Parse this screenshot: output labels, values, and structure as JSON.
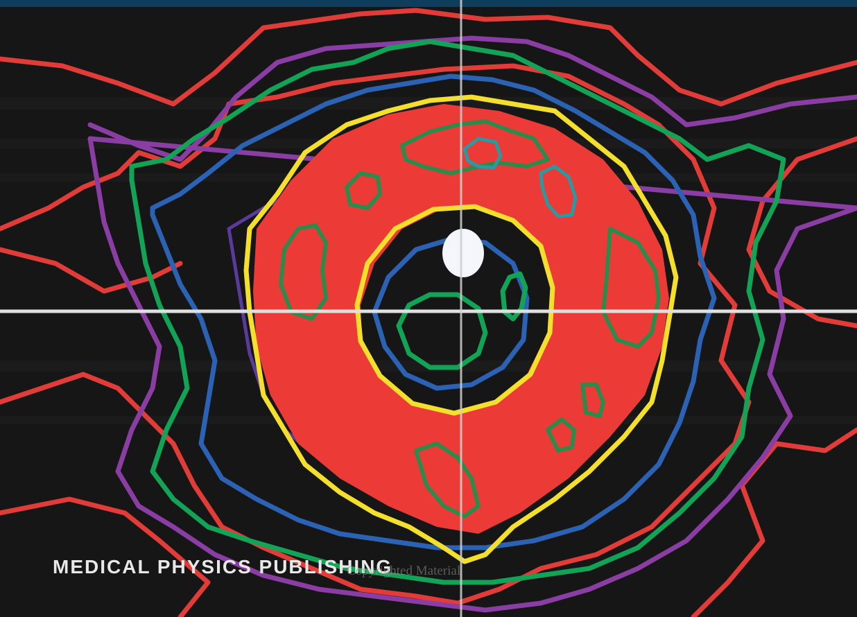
{
  "cover": {
    "publisher": "MEDICAL PHYSICS PUBLISHING",
    "watermark": "Copyrighted Material"
  },
  "colors": {
    "background": "#121212",
    "red_fill": "#ec3b36",
    "contour_red": "#e23c39",
    "contour_purple": "#8a3ea3",
    "contour_green": "#13a356",
    "contour_blue": "#2c62b4",
    "contour_yellow": "#f4e02c",
    "contour_teal": "#2a9aa2",
    "crosshair": "#d8d8d8",
    "top_band": "#0f3d5c"
  },
  "image_description_icons": [
    "dose-contour-plot",
    "crosshair"
  ]
}
